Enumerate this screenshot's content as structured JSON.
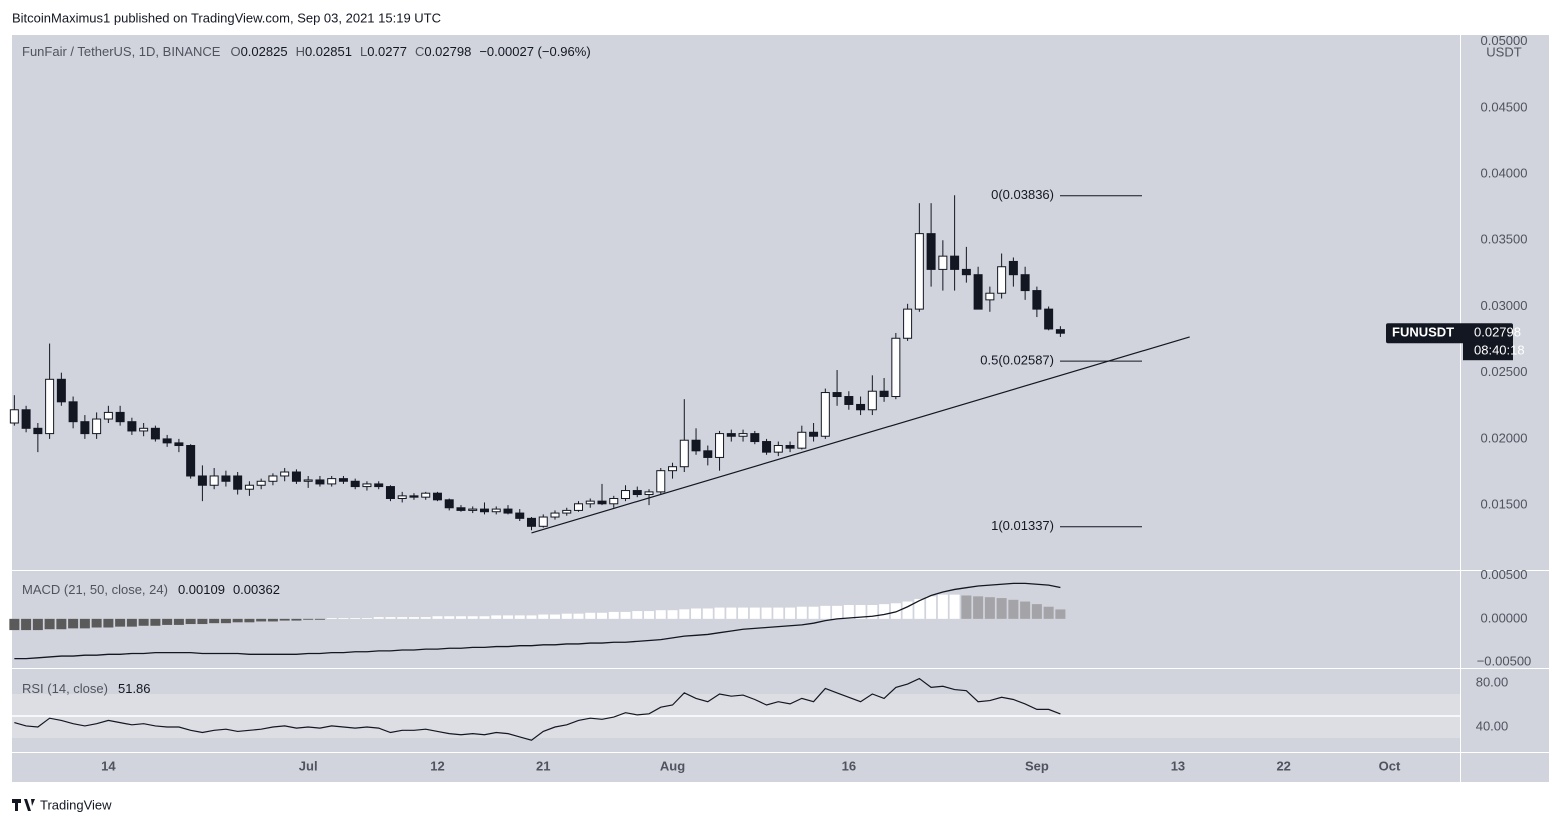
{
  "header": {
    "published": "BitcoinMaximus1 published on TradingView.com, Sep 03, 2021 15:19 UTC",
    "brand": "TradingView"
  },
  "chart_data": {
    "type": "candlestick",
    "title": "FunFair / TetherUS, 1D, BINANCE",
    "ohlc_letters": [
      "O",
      "H",
      "L",
      "C"
    ],
    "change": "−0.00027 (−0.96%)",
    "currency": "USDT",
    "symbol": "FUNUSDT",
    "countdown": "08:40:18",
    "open": [
      0.0212,
      0.0222,
      0.0208,
      0.0204,
      0.0245,
      0.0228,
      0.0213,
      0.0204,
      0.0215,
      0.022,
      0.0213,
      0.0206,
      0.0208,
      0.02,
      0.0197,
      0.0195,
      0.0172,
      0.0165,
      0.0172,
      0.0172,
      0.0162,
      0.0165,
      0.0168,
      0.0172,
      0.0175,
      0.0168,
      0.0169,
      0.0166,
      0.017,
      0.0168,
      0.0164,
      0.0166,
      0.0164,
      0.0155,
      0.0157,
      0.0156,
      0.0159,
      0.0154,
      0.0148,
      0.0146,
      0.0147,
      0.0145,
      0.0147,
      0.0144,
      0.014,
      0.0134,
      0.0141,
      0.0144,
      0.0146,
      0.0151,
      0.0153,
      0.0151,
      0.0155,
      0.0161,
      0.0158,
      0.016,
      0.0176,
      0.0179,
      0.0199,
      0.0191,
      0.0186,
      0.0204,
      0.0202,
      0.0204,
      0.0198,
      0.019,
      0.0195,
      0.0193,
      0.0205,
      0.0202,
      0.0235,
      0.0232,
      0.0226,
      0.0222,
      0.0236,
      0.0232,
      0.0276,
      0.0298,
      0.0355,
      0.0328,
      0.0338,
      0.0328,
      0.0324,
      0.0305,
      0.031,
      0.0334,
      0.0324,
      0.0312,
      0.0298,
      0.02825
    ],
    "high": [
      0.0233,
      0.0225,
      0.0212,
      0.0272,
      0.025,
      0.0232,
      0.0218,
      0.022,
      0.0225,
      0.0225,
      0.0216,
      0.0212,
      0.021,
      0.0203,
      0.02,
      0.0196,
      0.018,
      0.0178,
      0.0176,
      0.0175,
      0.0168,
      0.017,
      0.0174,
      0.0178,
      0.0177,
      0.0172,
      0.0172,
      0.0172,
      0.0172,
      0.017,
      0.0168,
      0.0168,
      0.0165,
      0.016,
      0.0159,
      0.016,
      0.016,
      0.0155,
      0.015,
      0.0149,
      0.0152,
      0.0149,
      0.015,
      0.0147,
      0.0141,
      0.0143,
      0.0146,
      0.0148,
      0.0153,
      0.0155,
      0.0166,
      0.0157,
      0.0165,
      0.0164,
      0.0162,
      0.0178,
      0.0182,
      0.023,
      0.0208,
      0.0195,
      0.0206,
      0.0207,
      0.0207,
      0.0206,
      0.02,
      0.0198,
      0.0198,
      0.021,
      0.0212,
      0.0238,
      0.0252,
      0.0236,
      0.0232,
      0.0248,
      0.0246,
      0.028,
      0.0302,
      0.0378,
      0.0378,
      0.035,
      0.0384,
      0.0345,
      0.033,
      0.0315,
      0.034,
      0.0337,
      0.033,
      0.0315,
      0.03,
      0.02851
    ],
    "low": [
      0.021,
      0.0205,
      0.019,
      0.02,
      0.0225,
      0.0208,
      0.02,
      0.02,
      0.0212,
      0.021,
      0.0203,
      0.0202,
      0.0198,
      0.0194,
      0.019,
      0.017,
      0.0153,
      0.0162,
      0.0164,
      0.0158,
      0.0157,
      0.0162,
      0.0165,
      0.0168,
      0.0166,
      0.0163,
      0.0164,
      0.0164,
      0.0166,
      0.0162,
      0.0161,
      0.0162,
      0.0153,
      0.0152,
      0.0154,
      0.0154,
      0.0153,
      0.0146,
      0.0145,
      0.0144,
      0.0143,
      0.0143,
      0.0143,
      0.0138,
      0.0131,
      0.0133,
      0.0139,
      0.0142,
      0.0145,
      0.0148,
      0.015,
      0.0148,
      0.0153,
      0.0156,
      0.015,
      0.0158,
      0.017,
      0.0175,
      0.0188,
      0.018,
      0.0176,
      0.0198,
      0.0198,
      0.0196,
      0.0188,
      0.0187,
      0.019,
      0.0192,
      0.0198,
      0.02,
      0.0225,
      0.0222,
      0.0218,
      0.0218,
      0.0228,
      0.023,
      0.0274,
      0.0296,
      0.0315,
      0.0312,
      0.0312,
      0.0318,
      0.0298,
      0.0296,
      0.0306,
      0.0315,
      0.0305,
      0.0292,
      0.0282,
      0.0277
    ],
    "close": [
      0.0222,
      0.0208,
      0.0204,
      0.0245,
      0.0228,
      0.0213,
      0.0204,
      0.0215,
      0.022,
      0.0213,
      0.0206,
      0.0208,
      0.02,
      0.0197,
      0.0195,
      0.0172,
      0.0165,
      0.0172,
      0.0168,
      0.0162,
      0.0165,
      0.0168,
      0.0172,
      0.0175,
      0.0168,
      0.0169,
      0.0166,
      0.017,
      0.0168,
      0.0164,
      0.0166,
      0.0164,
      0.0155,
      0.0157,
      0.0156,
      0.0159,
      0.0154,
      0.0148,
      0.0146,
      0.0147,
      0.0145,
      0.0147,
      0.0144,
      0.014,
      0.0134,
      0.0141,
      0.0144,
      0.0146,
      0.0151,
      0.0153,
      0.0151,
      0.0155,
      0.0161,
      0.0158,
      0.016,
      0.0176,
      0.0179,
      0.0199,
      0.0191,
      0.0186,
      0.0204,
      0.0202,
      0.0204,
      0.0198,
      0.019,
      0.0195,
      0.0193,
      0.0205,
      0.0202,
      0.0235,
      0.0232,
      0.0226,
      0.0222,
      0.0236,
      0.0232,
      0.0276,
      0.0298,
      0.0355,
      0.0328,
      0.0338,
      0.0328,
      0.0324,
      0.0298,
      0.031,
      0.033,
      0.0324,
      0.0312,
      0.0298,
      0.0283,
      0.02798
    ],
    "up_color": "#ffffff",
    "down_color": "#131722",
    "grid": false,
    "xlim": [
      -0.2,
      123
    ],
    "xticks": [
      {
        "value": 8,
        "label": "14"
      },
      {
        "value": 25,
        "label": "Jul"
      },
      {
        "value": 36,
        "label": "12"
      },
      {
        "value": 45,
        "label": "21"
      },
      {
        "value": 56,
        "label": "Aug"
      },
      {
        "value": 71,
        "label": "16"
      },
      {
        "value": 87,
        "label": "Sep"
      },
      {
        "value": 99,
        "label": "13"
      },
      {
        "value": 108,
        "label": "22"
      },
      {
        "value": 117,
        "label": "Oct"
      }
    ],
    "ylim": [
      0.0101,
      0.0505
    ],
    "yticks": [
      {
        "value": 0.015,
        "label": "0.01500"
      },
      {
        "value": 0.02,
        "label": "0.02000"
      },
      {
        "value": 0.025,
        "label": "0.02500"
      },
      {
        "value": 0.03,
        "label": "0.03000"
      },
      {
        "value": 0.035,
        "label": "0.03500"
      },
      {
        "value": 0.04,
        "label": "0.04000"
      },
      {
        "value": 0.045,
        "label": "0.04500"
      },
      {
        "value": 0.05,
        "label": "0.05000"
      }
    ],
    "fib_levels": [
      {
        "label": "0(0.03836)",
        "value": 0.03836
      },
      {
        "label": "0.5(0.02587)",
        "value": 0.02587
      },
      {
        "label": "1(0.01337)",
        "value": 0.01337
      }
    ],
    "trendline": {
      "x": [
        44,
        100
      ],
      "values": [
        0.0129,
        0.0277
      ],
      "color": "#131722"
    },
    "macd": {
      "title": "MACD (21, 50, close, 24)",
      "histogram": [
        -0.0013,
        -0.0013,
        -0.0013,
        -0.0012,
        -0.0012,
        -0.0011,
        -0.0011,
        -0.001,
        -0.001,
        -0.0009,
        -0.0009,
        -0.0008,
        -0.0008,
        -0.0007,
        -0.0007,
        -0.0006,
        -0.0006,
        -0.0005,
        -0.0005,
        -0.0004,
        -0.0004,
        -0.0003,
        -0.0003,
        -0.0002,
        -0.0002,
        -0.0001,
        -0.0001,
        0.0001,
        0.0001,
        0.0001,
        0.0001,
        0.0002,
        0.0002,
        0.0002,
        0.0002,
        0.0002,
        0.0003,
        0.0003,
        0.0003,
        0.0003,
        0.0003,
        0.0004,
        0.0004,
        0.0004,
        0.0004,
        0.0005,
        0.0005,
        0.0006,
        0.0006,
        0.0007,
        0.0007,
        0.0008,
        0.0008,
        0.0009,
        0.0009,
        0.001,
        0.001,
        0.0011,
        0.0012,
        0.0012,
        0.0013,
        0.0013,
        0.0013,
        0.0013,
        0.0013,
        0.0013,
        0.0013,
        0.0014,
        0.0014,
        0.0015,
        0.0015,
        0.0016,
        0.0016,
        0.0016,
        0.0017,
        0.0018,
        0.002,
        0.0023,
        0.0026,
        0.0028,
        0.0028,
        0.0027,
        0.0026,
        0.0025,
        0.0024,
        0.0022,
        0.002,
        0.0017,
        0.0014,
        0.00109
      ],
      "macd": [
        -0.0046,
        -0.0046,
        -0.0045,
        -0.0044,
        -0.0043,
        -0.0043,
        -0.0042,
        -0.0042,
        -0.0041,
        -0.0041,
        -0.004,
        -0.004,
        -0.0039,
        -0.0039,
        -0.0039,
        -0.0039,
        -0.004,
        -0.004,
        -0.004,
        -0.004,
        -0.0041,
        -0.0041,
        -0.0041,
        -0.0041,
        -0.0041,
        -0.004,
        -0.004,
        -0.0039,
        -0.0039,
        -0.0038,
        -0.0038,
        -0.0037,
        -0.0037,
        -0.0036,
        -0.0036,
        -0.0035,
        -0.0035,
        -0.0034,
        -0.0034,
        -0.0033,
        -0.0033,
        -0.0032,
        -0.0032,
        -0.0031,
        -0.0031,
        -0.003,
        -0.003,
        -0.0029,
        -0.0029,
        -0.0028,
        -0.0028,
        -0.0027,
        -0.0027,
        -0.0026,
        -0.0025,
        -0.0024,
        -0.0022,
        -0.002,
        -0.0019,
        -0.0018,
        -0.0016,
        -0.0014,
        -0.0012,
        -0.0011,
        -0.001,
        -0.0009,
        -0.0008,
        -0.0007,
        -0.0005,
        -0.0002,
        0.0,
        0.0001,
        0.0002,
        0.0003,
        0.0005,
        0.0008,
        0.0014,
        0.0021,
        0.0027,
        0.0031,
        0.0034,
        0.0036,
        0.0038,
        0.0039,
        0.004,
        0.0041,
        0.0041,
        0.004,
        0.0039,
        0.00362
      ],
      "hist_colors": {
        "neg_rise": "#5a5a5a",
        "neg_fall": "#26282e",
        "pos_rise": "#ffffff",
        "pos_fall": "#a3a3a8"
      },
      "line_color": "#131722",
      "ylim": [
        -0.00568,
        0.00553
      ],
      "yticks": [
        {
          "value": -0.005,
          "label": "−0.00500"
        },
        {
          "value": 0,
          "label": "0.00000"
        },
        {
          "value": 0.005,
          "label": "0.00500"
        }
      ]
    },
    "rsi": {
      "title": "RSI (14, close)",
      "values": [
        44,
        41,
        40,
        48,
        46,
        43,
        41,
        43,
        46,
        44,
        42,
        43,
        41,
        40,
        40,
        37,
        35,
        37,
        38,
        36,
        37,
        38,
        40,
        41,
        39,
        40,
        39,
        41,
        40,
        39,
        40,
        39,
        35,
        37,
        37,
        38,
        36,
        34,
        33,
        34,
        33,
        35,
        34,
        31,
        28,
        36,
        40,
        42,
        46,
        48,
        47,
        49,
        53,
        51,
        52,
        58,
        60,
        71,
        66,
        63,
        70,
        68,
        69,
        65,
        60,
        63,
        61,
        66,
        63,
        75,
        71,
        67,
        63,
        70,
        66,
        76,
        79,
        84,
        76,
        77,
        74,
        73,
        63,
        64,
        67,
        65,
        61,
        56,
        56,
        51.86
      ],
      "line_color": "#131722",
      "band": [
        30,
        70
      ],
      "midline": 50,
      "ylim": [
        17.3,
        92.7
      ],
      "yticks": [
        {
          "value": 40,
          "label": "40.00"
        },
        {
          "value": 80,
          "label": "80.00"
        }
      ]
    }
  }
}
